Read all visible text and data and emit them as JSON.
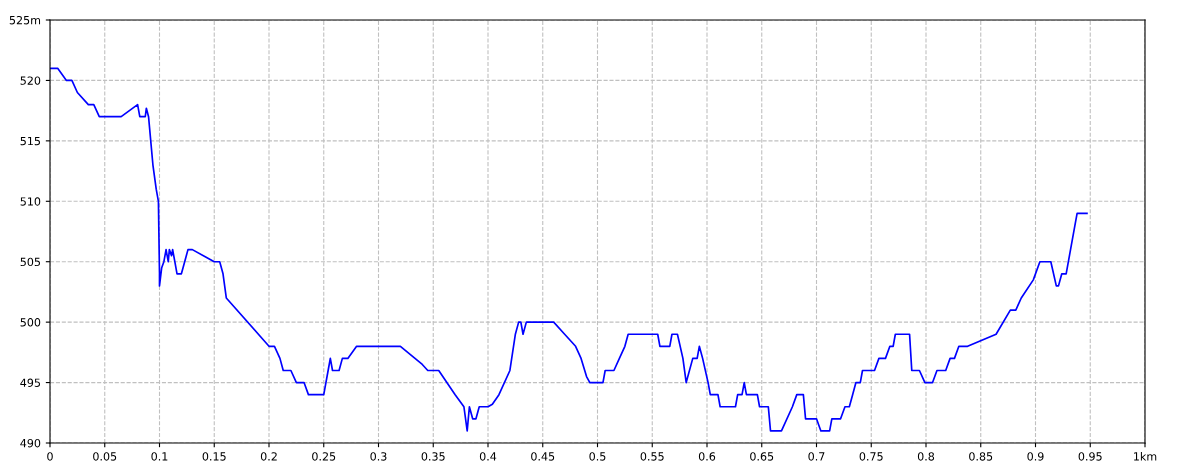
{
  "chart_data": {
    "type": "line",
    "x": [
      0,
      0.007,
      0.015,
      0.02,
      0.025,
      0.035,
      0.04,
      0.045,
      0.065,
      0.08,
      0.082,
      0.087,
      0.088,
      0.09,
      0.092,
      0.094,
      0.097,
      0.099,
      0.1,
      0.1,
      0.102,
      0.104,
      0.106,
      0.108,
      0.109,
      0.111,
      0.112,
      0.114,
      0.116,
      0.12,
      0.123,
      0.126,
      0.13,
      0.15,
      0.155,
      0.158,
      0.161,
      0.2,
      0.205,
      0.21,
      0.213,
      0.22,
      0.225,
      0.232,
      0.236,
      0.25,
      0.254,
      0.256,
      0.258,
      0.264,
      0.267,
      0.272,
      0.28,
      0.32,
      0.34,
      0.345,
      0.355,
      0.37,
      0.378,
      0.381,
      0.383,
      0.386,
      0.389,
      0.392,
      0.4,
      0.404,
      0.41,
      0.42,
      0.425,
      0.428,
      0.43,
      0.432,
      0.435,
      0.46,
      0.47,
      0.48,
      0.485,
      0.49,
      0.493,
      0.505,
      0.507,
      0.515,
      0.52,
      0.525,
      0.528,
      0.531,
      0.555,
      0.557,
      0.566,
      0.568,
      0.573,
      0.578,
      0.581,
      0.587,
      0.591,
      0.593,
      0.596,
      0.601,
      0.603,
      0.61,
      0.612,
      0.626,
      0.628,
      0.632,
      0.634,
      0.636,
      0.646,
      0.648,
      0.656,
      0.658,
      0.668,
      0.678,
      0.682,
      0.688,
      0.69,
      0.7,
      0.704,
      0.712,
      0.714,
      0.722,
      0.726,
      0.73,
      0.733,
      0.736,
      0.74,
      0.742,
      0.753,
      0.757,
      0.763,
      0.767,
      0.77,
      0.772,
      0.785,
      0.787,
      0.794,
      0.799,
      0.806,
      0.81,
      0.818,
      0.822,
      0.826,
      0.83,
      0.838,
      0.864,
      0.877,
      0.882,
      0.887,
      0.898,
      0.904,
      0.914,
      0.919,
      0.921,
      0.924,
      0.928,
      0.932,
      0.936,
      0.938,
      0.947
    ],
    "series": [
      {
        "color": "#0000ff",
        "values": [
          521,
          521,
          520,
          520,
          519,
          518,
          518,
          517,
          517,
          518,
          517,
          517,
          517.7,
          517,
          515,
          513,
          511,
          510,
          504,
          503,
          504.5,
          505,
          506,
          505,
          506,
          505.5,
          506,
          505,
          504,
          504,
          505,
          506,
          506,
          505,
          505,
          504,
          502,
          498,
          498,
          497,
          496,
          496,
          495,
          495,
          494,
          494,
          496,
          497,
          496,
          496,
          497,
          497,
          498,
          498,
          496.5,
          496,
          496,
          494,
          493,
          491,
          493,
          492,
          492,
          493,
          493,
          493.2,
          494,
          496,
          499,
          500,
          500,
          499,
          500,
          500,
          499,
          498,
          497,
          495.5,
          495,
          495,
          496,
          496,
          497,
          498,
          499,
          499,
          499,
          498,
          498,
          499,
          499,
          497,
          495,
          497,
          497,
          498,
          497,
          495,
          494,
          494,
          493,
          493,
          494,
          494,
          495,
          494,
          494,
          493,
          493,
          491,
          491,
          493,
          494,
          494,
          492,
          492,
          491,
          491,
          492,
          492,
          493,
          493,
          494,
          495,
          495,
          496,
          496,
          497,
          497,
          498,
          498,
          499,
          499,
          496,
          496,
          495,
          495,
          496,
          496,
          497,
          497,
          498,
          498,
          499,
          501,
          501,
          502,
          503.5,
          505,
          505,
          503,
          503,
          504,
          504,
          506,
          508,
          509,
          509
        ]
      }
    ],
    "xlim": [
      0,
      1
    ],
    "xticks": [
      0,
      0.05,
      0.1,
      0.15,
      0.2,
      0.25,
      0.3,
      0.35,
      0.4,
      0.45,
      0.5,
      0.55,
      0.6,
      0.65,
      0.7,
      0.75,
      0.8,
      0.85,
      0.9,
      0.95,
      {
        "value": 1,
        "label": "1km"
      }
    ],
    "ylim": [
      490,
      525
    ],
    "yticks": [
      490,
      495,
      500,
      505,
      510,
      515,
      520,
      {
        "value": 525,
        "label": "525m"
      }
    ],
    "grid": true,
    "marker": "none",
    "line_style": "solid"
  }
}
